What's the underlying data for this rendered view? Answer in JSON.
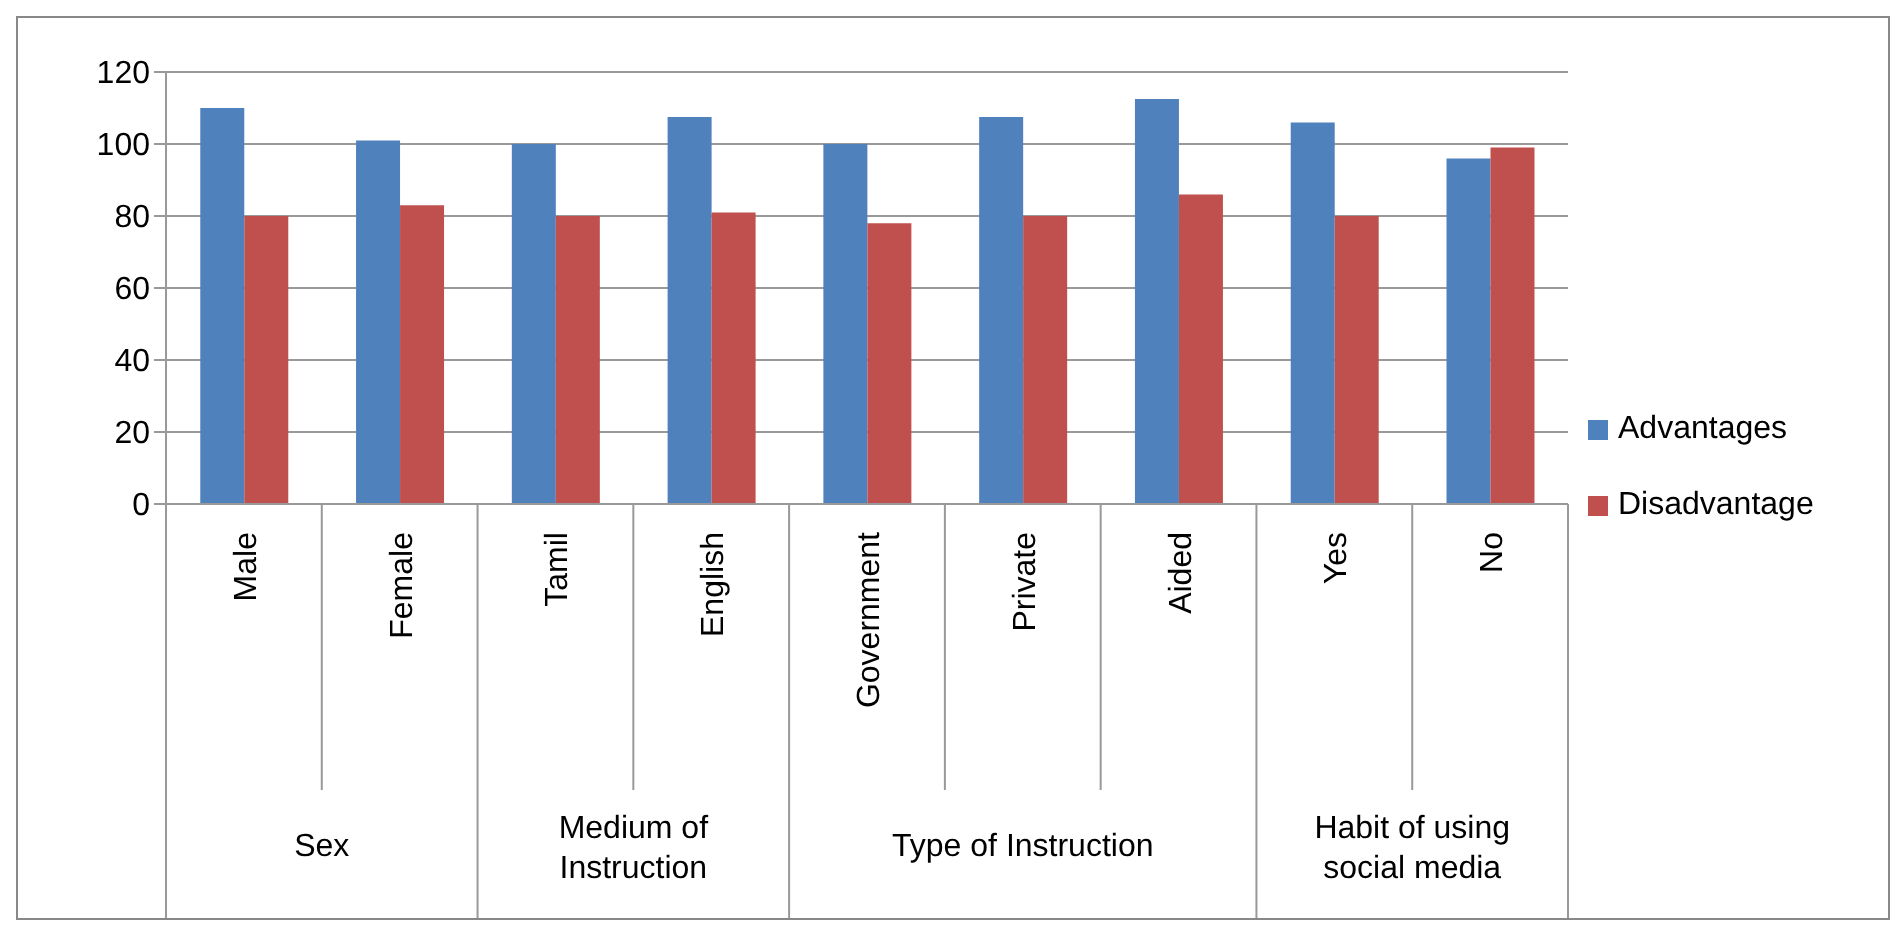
{
  "chart_data": {
    "type": "bar",
    "categories": [
      "Male",
      "Female",
      "Tamil",
      "English",
      "Government",
      "Private",
      "Aided",
      "Yes",
      "No"
    ],
    "series": [
      {
        "name": "Advantages",
        "color": "#4f81bd",
        "values": [
          110,
          101,
          100,
          107.5,
          100,
          107.5,
          112.5,
          106,
          96
        ]
      },
      {
        "name": "Disadvantage",
        "color": "#c0504d",
        "values": [
          80,
          83,
          80,
          81,
          78,
          80,
          86,
          80,
          99
        ]
      }
    ],
    "ylim": [
      0,
      120
    ],
    "yticks": [
      0,
      20,
      40,
      60,
      80,
      100,
      120
    ],
    "grid": "y",
    "legend": "right",
    "annotations": [
      "Sex",
      "Medium of\nInstruction",
      "Type of Instruction",
      "Habit of using\nsocial media"
    ]
  }
}
